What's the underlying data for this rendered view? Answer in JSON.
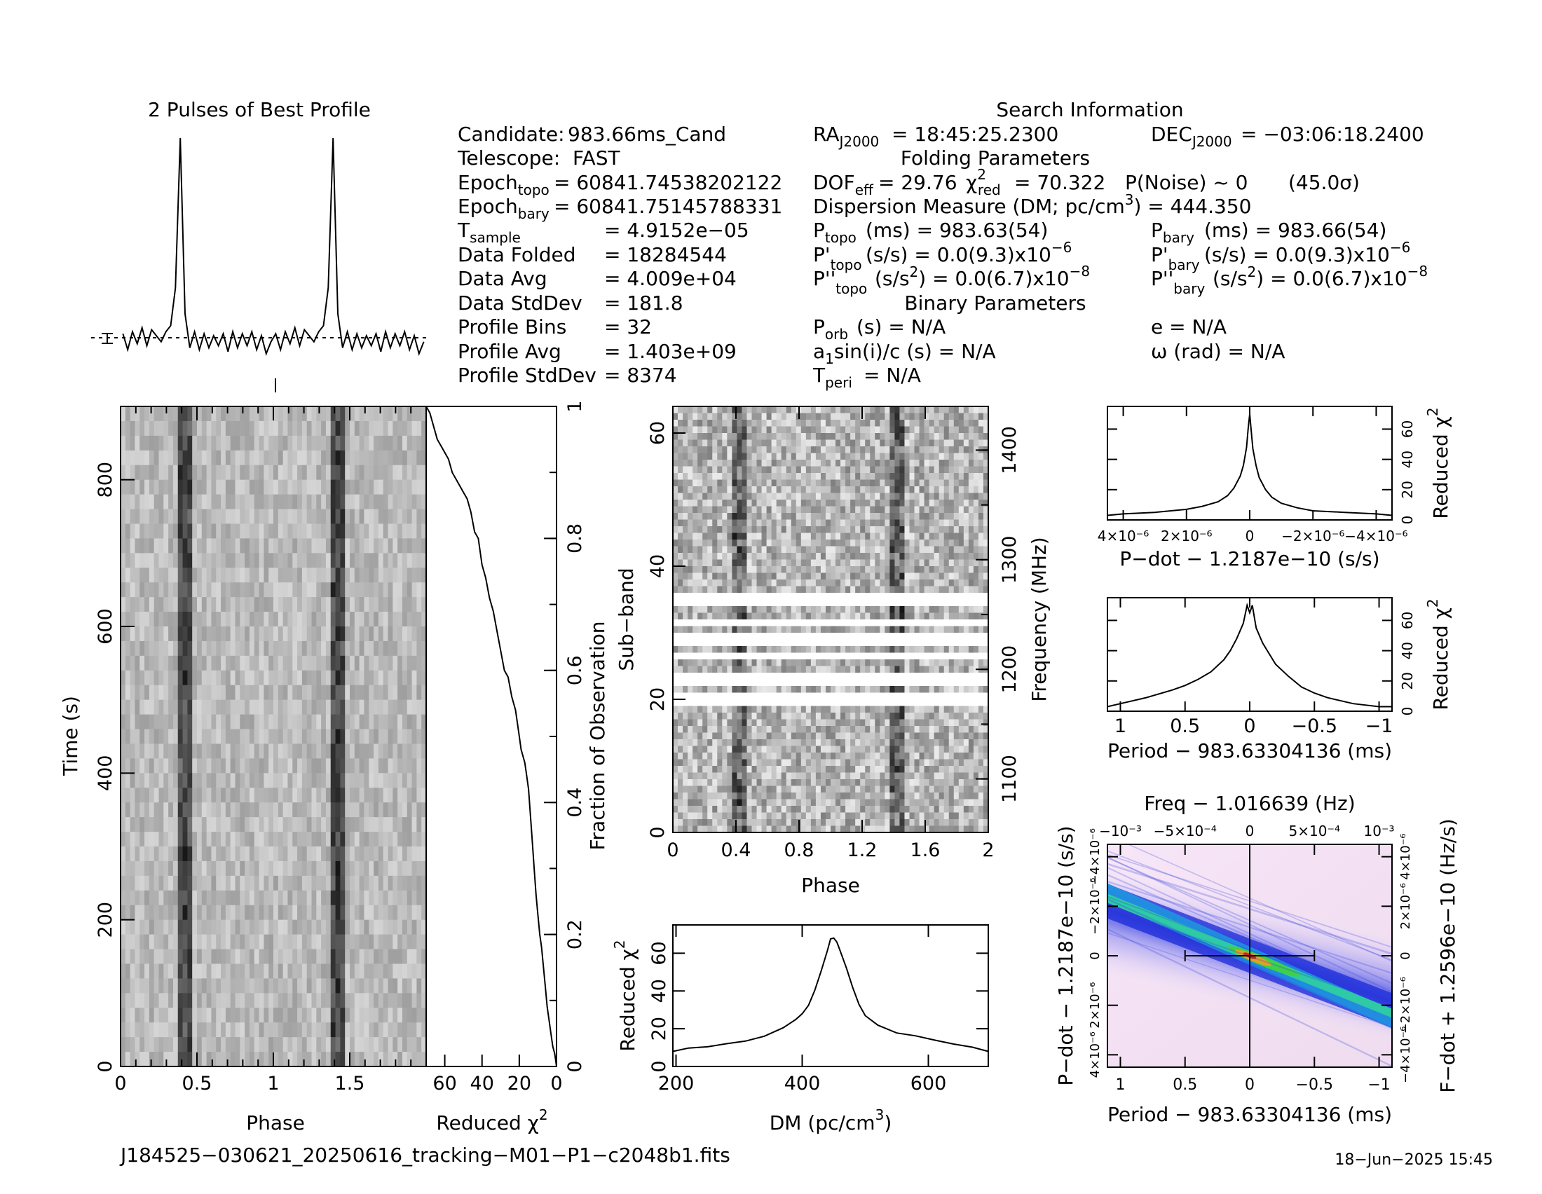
{
  "title_profile": "2 Pulses of Best Profile",
  "search_info": {
    "title": "Search Information",
    "candidate_label": "Candidate:",
    "candidate": "983.66ms_Cand",
    "telescope_label": "Telescope:",
    "telescope": "FAST",
    "epoch_topo_label": "Epoch",
    "epoch_topo_sub": "topo",
    "epoch_topo": "= 60841.74538202122",
    "epoch_bary_label": "Epoch",
    "epoch_bary_sub": "bary",
    "epoch_bary": "= 60841.75145788331",
    "tsample_label": "T",
    "tsample_sub": "sample",
    "tsample": "=   4.9152e−05",
    "data_folded_label": "Data Folded",
    "data_folded": "=   18284544",
    "data_avg_label": "Data Avg",
    "data_avg": "=   4.009e+04",
    "data_std_label": "Data StdDev",
    "data_std": "=   181.8",
    "profile_bins_label": "Profile Bins",
    "profile_bins": "=   32",
    "profile_avg_label": "Profile Avg",
    "profile_avg": "=   1.403e+09",
    "profile_std_label": "Profile StdDev",
    "profile_std": "=   8374",
    "ra_label": "RA",
    "ra_sub": "J2000",
    "ra": "= 18:45:25.2300",
    "dec_label": "DEC",
    "dec_sub": "J2000",
    "dec": "= −03:06:18.2400",
    "folding_title": "Folding Parameters",
    "dof_label": "DOF",
    "dof_sub": "eff",
    "dof": "= 29.76",
    "chi_label": "χ",
    "chi_sup": "2",
    "chi_sub": "red",
    "chi": "= 70.322",
    "pnoise": "P(Noise) ~ 0",
    "sigma": "(45.0σ)",
    "dm_text": "Dispersion Measure (DM; pc/cm",
    "dm_sup": "3",
    "dm_val": ") = 444.350",
    "ptopo_label": "P",
    "ptopo_sub": "topo",
    "ptopo": "(ms) =  983.63(54)",
    "pbary_label": "P",
    "pbary_sub": "bary",
    "pbary": "(ms) =  983.66(54)",
    "pdtopo_label": "P'",
    "pdtopo_sub": "topo",
    "pdtopo": "(s/s) = 0.0(9.3)x10",
    "pdtopo_exp": "−6",
    "pdbary_label": "P'",
    "pdbary_sub": "bary",
    "pdbary": "(s/s) = 0.0(9.3)x10",
    "pdbary_exp": "−6",
    "pddtopo_label": "P''",
    "pddtopo_sub": "topo",
    "pddtopo_a": "(s/s",
    "pddtopo_sup": "2",
    "pddtopo_b": ") = 0.0(6.7)x10",
    "pddtopo_exp": "−8",
    "pddbary_label": "P''",
    "pddbary_sub": "bary",
    "pddbary_a": "(s/s",
    "pddbary_sup": "2",
    "pddbary_b": ") = 0.0(6.7)x10",
    "pddbary_exp": "−8",
    "binary_title": "Binary Parameters",
    "porb_label": "P",
    "porb_sub": "orb",
    "porb": "(s) = N/A",
    "e": "e = N/A",
    "a1_label": "a",
    "a1_sub": "1",
    "a1": "sin(i)/c (s) = N/A",
    "omega": "ω (rad) = N/A",
    "tperi_label": "T",
    "tperi_sub": "peri",
    "tperi": "= N/A"
  },
  "footer": {
    "filename": "J184525−030621_20250616_tracking−M01−P1−c2048b1.fits",
    "date": "18−Jun−2025 15:45"
  },
  "colors": {
    "ink": "#000000",
    "trace": "#000000"
  },
  "chart_data": [
    {
      "type": "line",
      "id": "profile",
      "title": "2 Pulses of Best Profile",
      "x": [
        0.0,
        0.03125,
        0.0625,
        0.09375,
        0.125,
        0.15625,
        0.1875,
        0.21875,
        0.25,
        0.28125,
        0.3125,
        0.34375,
        0.375,
        0.40625,
        0.4375,
        0.46875,
        0.5,
        0.53125,
        0.5625,
        0.59375,
        0.625,
        0.65625,
        0.6875,
        0.71875,
        0.75,
        0.78125,
        0.8125,
        0.84375,
        0.875,
        0.90625,
        0.9375,
        0.96875
      ],
      "values": [
        0.02,
        -0.06,
        0.03,
        -0.03,
        0.05,
        -0.04,
        0.04,
        0.01,
        -0.02,
        0.03,
        0.06,
        0.25,
        1.0,
        0.12,
        -0.05,
        0.03,
        -0.06,
        0.02,
        -0.05,
        0.01,
        -0.04,
        0.02,
        -0.07,
        0.03,
        -0.05,
        0.02,
        -0.04,
        0.03,
        -0.06,
        0.01,
        -0.08,
        -0.02
      ],
      "xlim": [
        0,
        2
      ],
      "note_pulses": 2
    },
    {
      "type": "heatmap",
      "id": "time_phase",
      "xlabel": "Phase",
      "ylabel": "Time (s)",
      "xticks": [
        "0",
        "0.5",
        "1",
        "1.5"
      ],
      "yticks": [
        "0",
        "200",
        "400",
        "600",
        "800"
      ],
      "xlim": [
        0,
        2
      ],
      "ylim": [
        0,
        900
      ],
      "pulse_phase": [
        0.42,
        1.42
      ]
    },
    {
      "type": "line",
      "id": "time_chi2",
      "xlabel": "Reduced χ",
      "xlabel_sup": "2",
      "ylabel": "Fraction of Observation",
      "xticks": [
        "60",
        "40",
        "20",
        "0"
      ],
      "yticks": [
        "0",
        "0.2",
        "0.4",
        "0.6",
        "0.8",
        "1"
      ],
      "xlim": [
        70,
        0
      ],
      "ylim": [
        0,
        1
      ],
      "x": [
        0,
        0.5,
        1,
        2,
        3,
        4,
        5,
        6,
        7,
        8,
        9,
        10,
        11,
        12,
        13,
        14,
        15,
        16,
        17,
        18,
        19,
        20,
        21,
        22,
        24,
        26,
        28,
        30,
        32,
        34,
        36,
        38,
        40,
        42,
        44,
        46,
        48,
        50,
        52,
        54,
        56,
        58,
        60,
        62,
        64,
        66,
        68,
        70
      ],
      "y": [
        0,
        0.01,
        0.02,
        0.03,
        0.05,
        0.07,
        0.09,
        0.12,
        0.15,
        0.18,
        0.2,
        0.23,
        0.26,
        0.3,
        0.34,
        0.38,
        0.42,
        0.44,
        0.46,
        0.47,
        0.48,
        0.5,
        0.52,
        0.54,
        0.56,
        0.59,
        0.6,
        0.63,
        0.66,
        0.69,
        0.71,
        0.74,
        0.76,
        0.8,
        0.81,
        0.84,
        0.86,
        0.87,
        0.88,
        0.89,
        0.9,
        0.92,
        0.93,
        0.94,
        0.95,
        0.97,
        0.99,
        1.0
      ]
    },
    {
      "type": "heatmap",
      "id": "subband_phase",
      "xlabel": "Phase",
      "ylabel": "Sub−band",
      "ylabel2": "Frequency (MHz)",
      "xticks": [
        "0",
        "0.4",
        "0.8",
        "1.2",
        "1.6",
        "2"
      ],
      "yticks": [
        "0",
        "20",
        "40",
        "60"
      ],
      "y2ticks": [
        "1100",
        "1200",
        "1300",
        "1400"
      ],
      "xlim": [
        0,
        2
      ],
      "ylim": [
        0,
        64
      ],
      "pulse_phase": [
        0.42,
        1.42
      ],
      "masked_subbands": [
        19,
        20,
        22,
        23,
        26,
        28,
        29,
        31,
        34,
        35
      ]
    },
    {
      "type": "line",
      "id": "dm_chi2",
      "xlabel": "DM (pc/cm",
      "xlabel_sup": "3",
      "xlabel_end": ")",
      "ylabel": "Reduced χ",
      "ylabel_sup": "2",
      "xticks": [
        "200",
        "400",
        "600"
      ],
      "yticks": [
        "0",
        "20",
        "40",
        "60"
      ],
      "xlim": [
        195,
        695
      ],
      "ylim": [
        0,
        75
      ],
      "x": [
        195,
        220,
        250,
        280,
        310,
        340,
        370,
        390,
        400,
        410,
        420,
        430,
        440,
        445,
        450,
        455,
        460,
        470,
        480,
        490,
        500,
        520,
        550,
        580,
        610,
        640,
        670,
        695
      ],
      "y": [
        8,
        9.5,
        11,
        12.5,
        14,
        16,
        20,
        25,
        28,
        33,
        40,
        50,
        62,
        68,
        68,
        66,
        62,
        52,
        42,
        33,
        27,
        22,
        18,
        16,
        14,
        12,
        10,
        8
      ]
    },
    {
      "type": "line",
      "id": "pdot_chi2",
      "xlabel": "P−dot − 1.2187e−10 (s/s)",
      "ylabel": "Reduced χ",
      "ylabel_sup": "2",
      "xticks": [
        "4×10⁻⁶",
        "2×10⁻⁶",
        "0",
        "−2×10⁻⁶",
        "−4×10⁻⁶"
      ],
      "yticks": [
        "0",
        "20",
        "40",
        "60"
      ],
      "xlim": [
        4.5e-06,
        -4.5e-06
      ],
      "ylim": [
        0,
        75
      ],
      "x": [
        4.5e-06,
        4e-06,
        3e-06,
        2e-06,
        1.5e-06,
        1e-06,
        7e-07,
        5e-07,
        3e-07,
        2e-07,
        1e-07,
        5e-08,
        0,
        -5e-08,
        -1e-07,
        -2e-07,
        -3e-07,
        -5e-07,
        -7e-07,
        -1e-06,
        -1.5e-06,
        -2e-06,
        -3e-06,
        -4e-06,
        -4.5e-06
      ],
      "y": [
        3,
        4,
        5,
        7,
        9,
        12,
        16,
        21,
        29,
        36,
        48,
        60,
        70,
        58,
        47,
        36,
        28,
        20,
        15,
        11,
        8,
        6,
        5,
        4,
        3
      ]
    },
    {
      "type": "line",
      "id": "period_chi2",
      "xlabel": "Period − 983.63304136 (ms)",
      "ylabel": "Reduced χ",
      "ylabel_sup": "2",
      "xticks": [
        "1",
        "0.5",
        "0",
        "−0.5",
        "−1"
      ],
      "yticks": [
        "0",
        "20",
        "40",
        "60"
      ],
      "xlim": [
        1.1,
        -1.1
      ],
      "ylim": [
        0,
        75
      ],
      "x": [
        1.1,
        1.0,
        0.8,
        0.6,
        0.5,
        0.4,
        0.3,
        0.2,
        0.15,
        0.1,
        0.05,
        0.02,
        0.0,
        -0.02,
        -0.05,
        -0.1,
        -0.15,
        -0.2,
        -0.3,
        -0.4,
        -0.5,
        -0.6,
        -0.8,
        -1.0,
        -1.1
      ],
      "y": [
        3,
        5,
        9,
        14,
        17,
        21,
        26,
        34,
        40,
        48,
        58,
        70,
        65,
        70,
        55,
        45,
        38,
        31,
        23,
        16,
        12,
        9,
        5,
        3,
        3
      ]
    },
    {
      "type": "heatmap",
      "id": "ppdot",
      "title": "Freq − 1.016639 (Hz)",
      "xlabel": "Period − 983.63304136 (ms)",
      "ylabel": "P−dot − 1.2187e−10 (s/s)",
      "ylabel2": "F−dot + 1.2596e−10 (Hz/s)",
      "xticks": [
        "1",
        "0.5",
        "0",
        "−0.5",
        "−1"
      ],
      "topticks": [
        "−10⁻³",
        "−5×10⁻⁴",
        "0",
        "5×10⁻⁴",
        "10⁻³"
      ],
      "yticks": [
        "4×10⁻⁶",
        "2×10⁻⁶",
        "0",
        "−2×10⁻⁶",
        "−4×10⁻⁶"
      ],
      "y2ticks": [
        "−4×10⁻⁶",
        "−2×10⁻⁶",
        "0",
        "2×10⁻⁶",
        "4×10⁻⁶"
      ],
      "xlim": [
        1.1,
        -1.1
      ],
      "ylim": [
        4.5e-06,
        -4.5e-06
      ],
      "best": [
        0,
        0
      ],
      "errbar_x": [
        0.5,
        -0.5
      ]
    }
  ]
}
